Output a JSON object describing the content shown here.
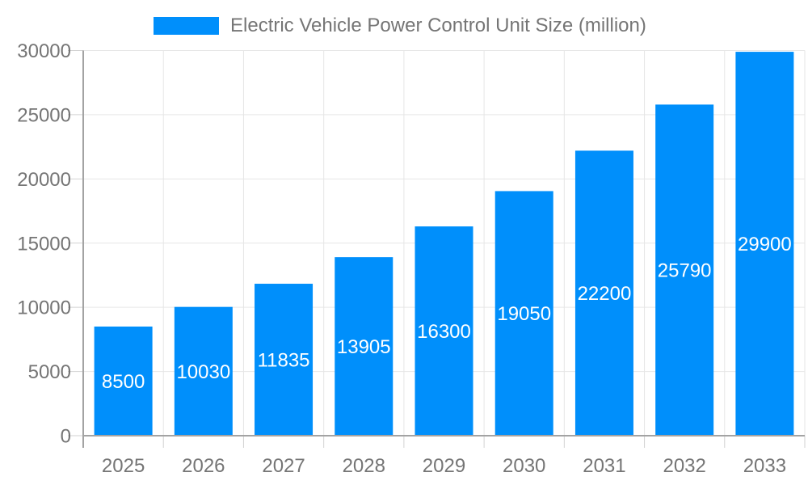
{
  "legend": {
    "label": "Electric Vehicle Power Control Unit Size (million)"
  },
  "chart_data": {
    "type": "bar",
    "title": "Electric Vehicle Power Control Unit Size (million)",
    "categories": [
      "2025",
      "2026",
      "2027",
      "2028",
      "2029",
      "2030",
      "2031",
      "2032",
      "2033"
    ],
    "values": [
      8500,
      10030,
      11835,
      13905,
      16300,
      19050,
      22200,
      25790,
      29900
    ],
    "xlabel": "",
    "ylabel": "",
    "ylim": [
      0,
      30000
    ],
    "yticks": [
      0,
      5000,
      10000,
      15000,
      20000,
      25000,
      30000
    ],
    "grid": true,
    "legend_position": "top",
    "value_label_position": "inside-center",
    "colors": {
      "bar": "#008FFB",
      "axis_line": "#a3a3a3",
      "gridline": "#e6e6e6",
      "tick": "#d2d2d2",
      "axis_text": "#757575",
      "value_text": "#ffffff",
      "background": "#ffffff"
    }
  }
}
